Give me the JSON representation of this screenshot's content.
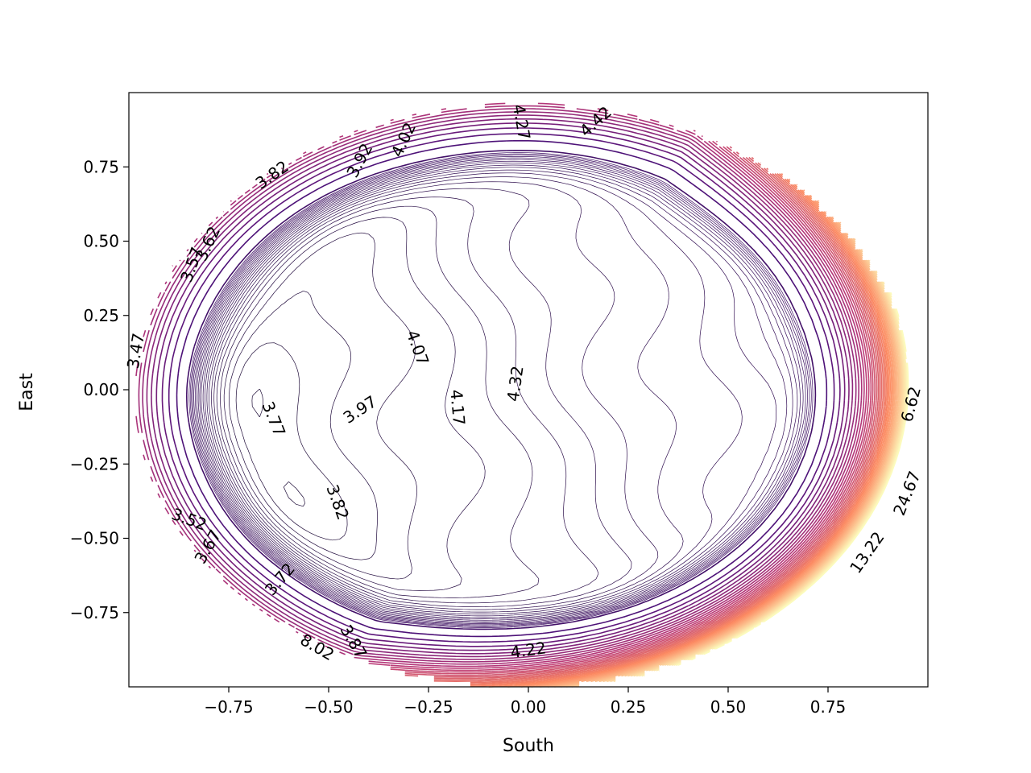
{
  "chart_data": {
    "type": "contour",
    "title": "",
    "xlabel": "South",
    "ylabel": "East",
    "xlim": [
      -1.0,
      1.0
    ],
    "ylim": [
      -1.0,
      1.0
    ],
    "grid": false,
    "colormap": "magma",
    "x_ticks": [
      {
        "value": -0.75,
        "label": "−0.75"
      },
      {
        "value": -0.5,
        "label": "−0.50"
      },
      {
        "value": -0.25,
        "label": "−0.25"
      },
      {
        "value": 0.0,
        "label": "0.00"
      },
      {
        "value": 0.25,
        "label": "0.25"
      },
      {
        "value": 0.5,
        "label": "0.50"
      },
      {
        "value": 0.75,
        "label": "0.75"
      }
    ],
    "y_ticks": [
      {
        "value": 0.75,
        "label": "0.75"
      },
      {
        "value": 0.5,
        "label": "0.50"
      },
      {
        "value": 0.25,
        "label": "0.25"
      },
      {
        "value": 0.0,
        "label": "0.00"
      },
      {
        "value": -0.25,
        "label": "−0.25"
      },
      {
        "value": -0.5,
        "label": "−0.50"
      },
      {
        "value": -0.75,
        "label": "−0.75"
      }
    ],
    "contour_labels": [
      {
        "text": "3.82",
        "x": -0.64,
        "y": 0.72,
        "angle": -35
      },
      {
        "text": "3.92",
        "x": -0.42,
        "y": 0.77,
        "angle": -62
      },
      {
        "text": "4.02",
        "x": -0.31,
        "y": 0.84,
        "angle": -65
      },
      {
        "text": "4.27",
        "x": -0.02,
        "y": 0.9,
        "angle": 80
      },
      {
        "text": "4.42",
        "x": 0.17,
        "y": 0.9,
        "angle": -42
      },
      {
        "text": "3.62",
        "x": -0.8,
        "y": 0.49,
        "angle": -65
      },
      {
        "text": "3.57",
        "x": -0.84,
        "y": 0.42,
        "angle": -70
      },
      {
        "text": "4.07",
        "x": -0.28,
        "y": 0.14,
        "angle": 70
      },
      {
        "text": "4.17",
        "x": -0.18,
        "y": -0.06,
        "angle": 85
      },
      {
        "text": "4.32",
        "x": -0.03,
        "y": 0.02,
        "angle": -82
      },
      {
        "text": "3.97",
        "x": -0.42,
        "y": -0.07,
        "angle": -33
      },
      {
        "text": "3.77",
        "x": -0.64,
        "y": -0.1,
        "angle": 68
      },
      {
        "text": "3.82",
        "x": -0.48,
        "y": -0.38,
        "angle": 70
      },
      {
        "text": "3.67",
        "x": -0.8,
        "y": -0.53,
        "angle": -60
      },
      {
        "text": "3.52",
        "x": -0.85,
        "y": -0.44,
        "angle": 20
      },
      {
        "text": "3.72",
        "x": -0.62,
        "y": -0.64,
        "angle": -50
      },
      {
        "text": "3.87",
        "x": -0.44,
        "y": -0.85,
        "angle": 60
      },
      {
        "text": "8.02",
        "x": -0.53,
        "y": -0.87,
        "angle": 30
      },
      {
        "text": "4.22",
        "x": 0.0,
        "y": -0.88,
        "angle": -8
      },
      {
        "text": "6.62",
        "x": 0.96,
        "y": -0.05,
        "angle": -75
      },
      {
        "text": "24.67",
        "x": 0.95,
        "y": -0.35,
        "angle": -68
      },
      {
        "text": "13.22",
        "x": 0.85,
        "y": -0.55,
        "angle": -55
      },
      {
        "text": "3.47",
        "x": -0.98,
        "y": 0.13,
        "angle": -80
      }
    ]
  }
}
